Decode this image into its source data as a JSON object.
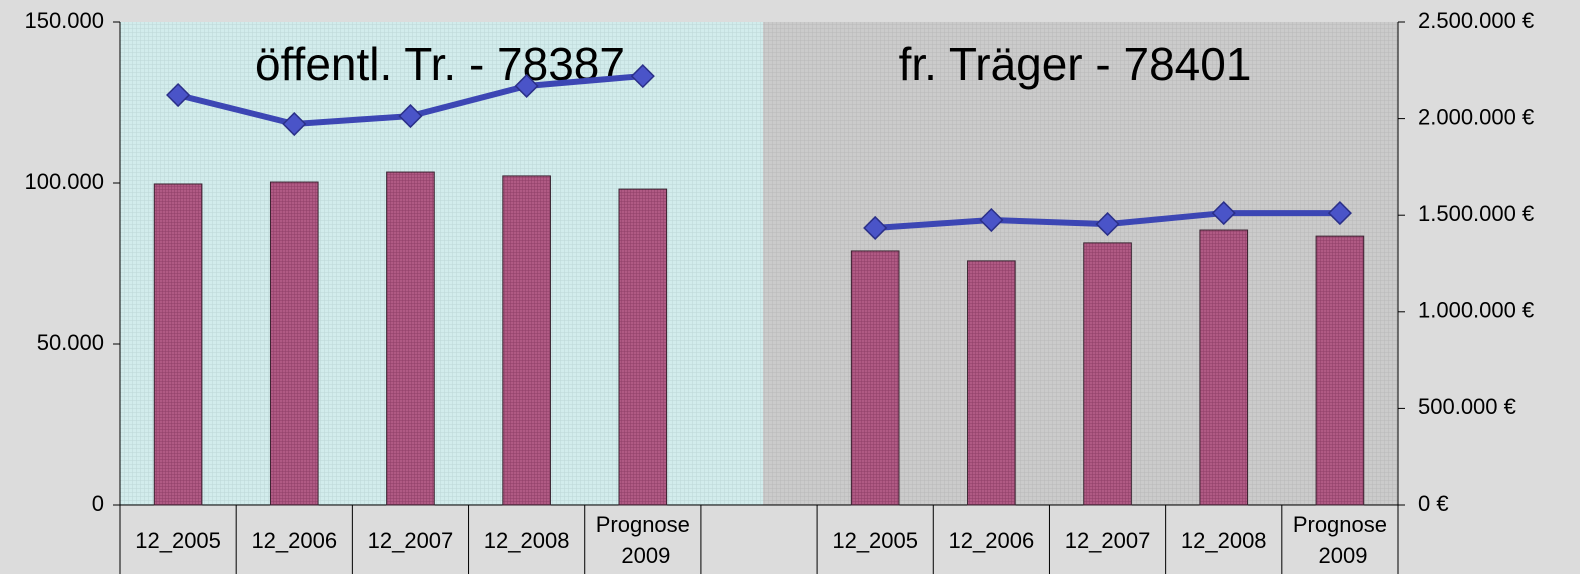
{
  "chart_data": {
    "type": "bar_line",
    "categories": [
      "12_2005",
      "12_2006",
      "12_2007",
      "12_2008",
      "Prognose 2009",
      null,
      "12_2005",
      "12_2006",
      "12_2007",
      "12_2008",
      "Prognose 2009"
    ],
    "series": [
      {
        "type": "bar",
        "color": "#b05a84",
        "values": [
          99700,
          100300,
          103400,
          102200,
          98100,
          null,
          78900,
          75800,
          81400,
          85400,
          83500
        ]
      },
      {
        "type": "line",
        "color": "#3c46b4",
        "axis": "y2",
        "values": [
          2122000,
          1972000,
          2013000,
          2169000,
          2220000,
          null,
          1434000,
          1475000,
          1454000,
          1511000,
          1511000
        ]
      }
    ],
    "ylim": [
      0,
      150000
    ],
    "yticks": [
      0,
      {
        "value": 50000,
        "label": "50.000"
      },
      {
        "value": 100000,
        "label": "100.000"
      },
      {
        "value": 150000,
        "label": "150.000"
      }
    ],
    "y2lim": [
      0,
      2500000
    ],
    "y2ticks": [
      {
        "value": 0,
        "label": "0 €"
      },
      {
        "value": 500000,
        "label": "500.000 €"
      },
      {
        "value": 1000000,
        "label": "1.000.000 €"
      },
      {
        "value": 1500000,
        "label": "1.500.000 €"
      },
      {
        "value": 2000000,
        "label": "2.000.000 €"
      },
      {
        "value": 2500000,
        "label": "2.500.000 €"
      }
    ],
    "annotations": [
      "öffentl. Tr. - 78387",
      "fr. Träger - 78401"
    ]
  }
}
